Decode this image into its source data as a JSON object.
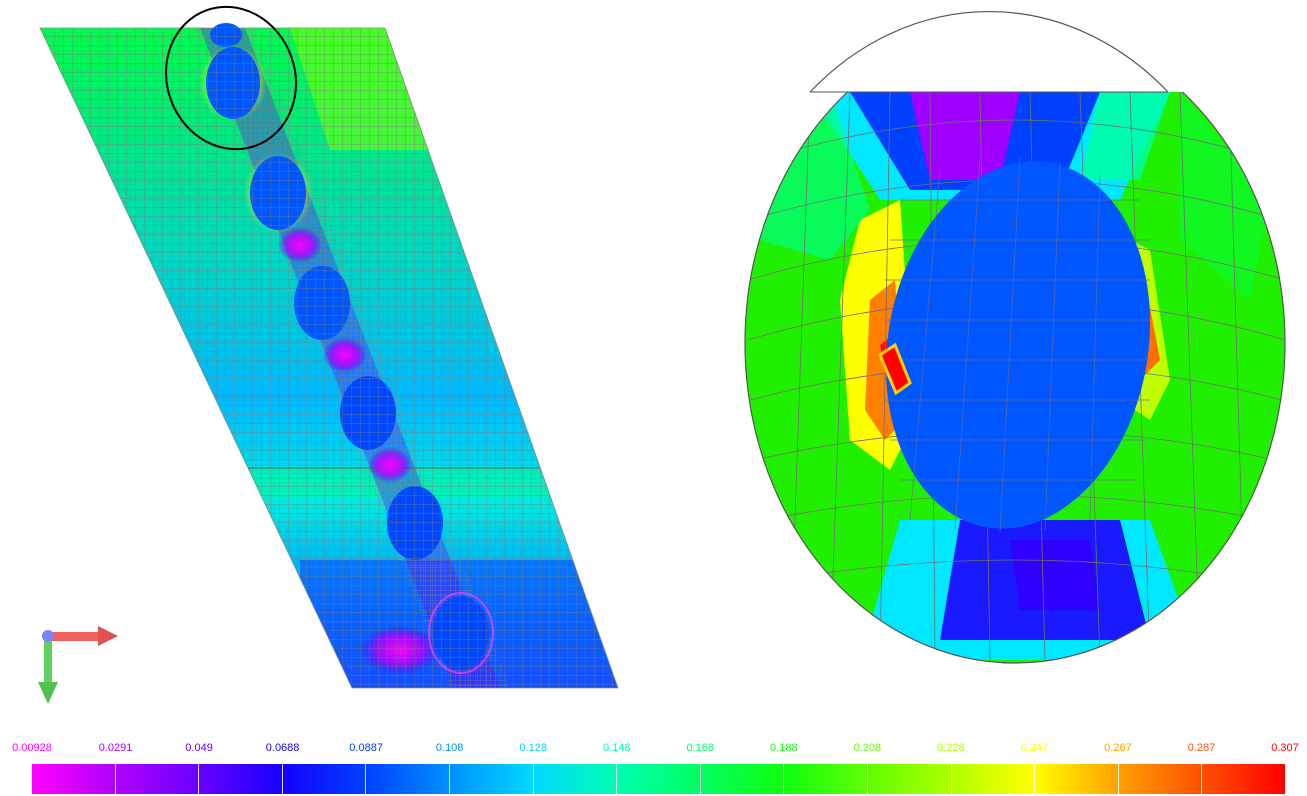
{
  "legend": {
    "ticks": [
      {
        "label": "0.00928",
        "color": "#ff00ff"
      },
      {
        "label": "0.0291",
        "color": "#b000ff"
      },
      {
        "label": "0.049",
        "color": "#6a00ff"
      },
      {
        "label": "0.0688",
        "color": "#1400ff"
      },
      {
        "label": "0.0887",
        "color": "#0040ff"
      },
      {
        "label": "0.108",
        "color": "#0090ff"
      },
      {
        "label": "0.128",
        "color": "#00d8ff"
      },
      {
        "label": "0.148",
        "color": "#00ffb0"
      },
      {
        "label": "0.168",
        "color": "#00ff60"
      },
      {
        "label": "0.188",
        "color": "#10ff10"
      },
      {
        "label": "0.208",
        "color": "#60ff00"
      },
      {
        "label": "0.228",
        "color": "#b0ff00"
      },
      {
        "label": "0.247",
        "color": "#ffff00"
      },
      {
        "label": "0.267",
        "color": "#ffa000"
      },
      {
        "label": "0.287",
        "color": "#ff5000"
      },
      {
        "label": "0.307",
        "color": "#ff0000"
      }
    ],
    "segments": [
      "#ff00ff",
      "#b000ff",
      "#6a00ff",
      "#1400ff",
      "#0040ff",
      "#0090ff",
      "#00d8ff",
      "#00ffb0",
      "#00ff60",
      "#10ff10",
      "#60ff00",
      "#b0ff00",
      "#ffff00",
      "#ffa000",
      "#ff5000"
    ]
  },
  "colors": {
    "mesh_line": "#7a7a7a",
    "hole_fill": "#0057ff",
    "outline": "#000000",
    "axis_x": "#f06060",
    "axis_y": "#60d060",
    "axis_origin": "#8080ff",
    "highlight": "#ffd000"
  },
  "icons": {
    "axis_triad": "axis-triad-icon"
  }
}
